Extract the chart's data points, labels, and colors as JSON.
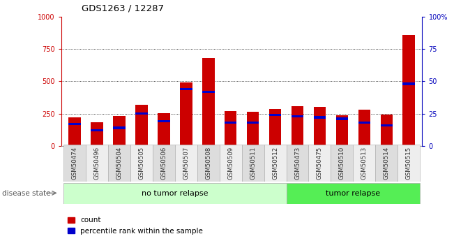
{
  "title": "GDS1263 / 12287",
  "samples": [
    "GSM50474",
    "GSM50496",
    "GSM50504",
    "GSM50505",
    "GSM50506",
    "GSM50507",
    "GSM50508",
    "GSM50509",
    "GSM50511",
    "GSM50512",
    "GSM50473",
    "GSM50475",
    "GSM50510",
    "GSM50513",
    "GSM50514",
    "GSM50515"
  ],
  "counts": [
    220,
    185,
    230,
    320,
    255,
    490,
    680,
    270,
    265,
    285,
    310,
    300,
    235,
    280,
    240,
    860
  ],
  "percentiles": [
    17,
    12,
    14,
    25,
    19,
    44,
    42,
    18,
    18,
    24,
    23,
    22,
    21,
    18,
    16,
    48
  ],
  "no_tumor_count": 10,
  "bar_color_count": "#cc0000",
  "bar_color_pct": "#0000cc",
  "left_yaxis_color": "#cc0000",
  "right_yaxis_color": "#0000bb",
  "ylim_left": [
    0,
    1000
  ],
  "ylim_right": [
    0,
    100
  ],
  "yticks_left": [
    0,
    250,
    500,
    750,
    1000
  ],
  "yticks_right": [
    0,
    25,
    50,
    75,
    100
  ],
  "grid_yticks": [
    250,
    500,
    750
  ],
  "disease_state_label": "disease state",
  "no_tumor_label": "no tumor relapse",
  "tumor_label": "tumor relapse",
  "legend_count": "count",
  "legend_pct": "percentile rank within the sample",
  "no_tumor_color": "#ccffcc",
  "tumor_color": "#55ee55",
  "bar_width": 0.55,
  "tick_bg_odd": "#dddddd",
  "tick_bg_even": "#eeeeee",
  "bg_color": "#ffffff"
}
